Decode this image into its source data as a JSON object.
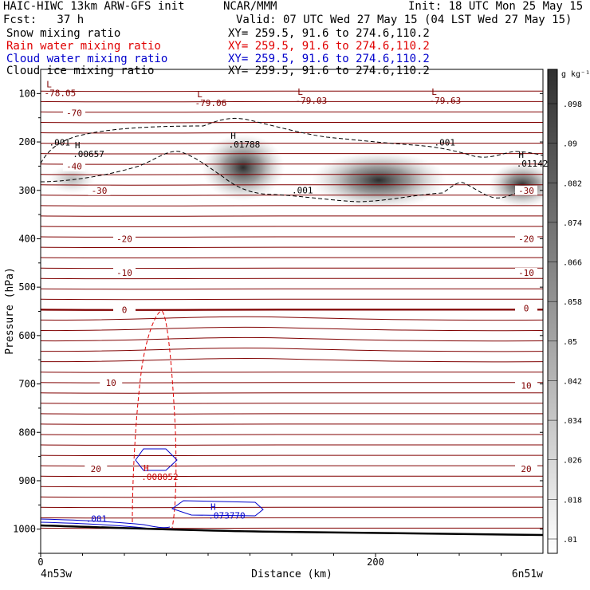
{
  "header": {
    "model_title": "HAIC-HIWC 13km ARW-GFS init",
    "org": "NCAR/MMM",
    "init": "Init: 18 UTC Mon 25 May 15",
    "fcst": "Fcst:   37 h",
    "valid": "Valid: 07 UTC Wed 27 May 15 (04 LST Wed 27 May 15)"
  },
  "fields": [
    {
      "name": "Snow mixing ratio",
      "xy": "XY= 259.5, 91.6 to 274.6,110.2",
      "color": "#000000"
    },
    {
      "name": "Rain water mixing ratio",
      "xy": "XY= 259.5, 91.6 to 274.6,110.2",
      "color": "#e00000"
    },
    {
      "name": "Cloud water mixing ratio",
      "xy": "XY= 259.5, 91.6 to 274.6,110.2",
      "color": "#0000cc"
    },
    {
      "name": "Cloud ice mixing ratio",
      "xy": "XY= 259.5, 91.6 to 274.6,110.2",
      "color": "#000000"
    }
  ],
  "chart_data": {
    "type": "cross-section contour",
    "xlabel": "Distance (km)",
    "ylabel": "Pressure (hPa)",
    "xlim": [
      0,
      300
    ],
    "ylim": [
      1050,
      50
    ],
    "x_ticks": [
      0,
      200
    ],
    "y_ticks": [
      100,
      200,
      300,
      400,
      500,
      600,
      700,
      800,
      900,
      1000
    ],
    "x_endpoints": [
      "4n53w",
      "6n51w"
    ],
    "colorbar": {
      "unit": "g kg⁻¹",
      "ticks": [
        ".01",
        ".018",
        ".026",
        ".034",
        ".042",
        ".05",
        ".058",
        ".066",
        ".074",
        ".082",
        ".09",
        ".098"
      ]
    },
    "temperature_labels": [
      {
        "text": "-70",
        "x": 20,
        "p": 145
      },
      {
        "text": "-40",
        "x": 20,
        "p": 255
      },
      {
        "text": "-30",
        "x": 35,
        "p": 305
      },
      {
        "text": "-30",
        "x": 290,
        "p": 305
      },
      {
        "text": "-20",
        "x": 50,
        "p": 405
      },
      {
        "text": "-20",
        "x": 290,
        "p": 405
      },
      {
        "text": "-10",
        "x": 50,
        "p": 475
      },
      {
        "text": "-10",
        "x": 290,
        "p": 475
      },
      {
        "text": "0",
        "x": 50,
        "p": 552
      },
      {
        "text": "0",
        "x": 290,
        "p": 548
      },
      {
        "text": "10",
        "x": 42,
        "p": 702
      },
      {
        "text": "10",
        "x": 290,
        "p": 708
      },
      {
        "text": "20",
        "x": 33,
        "p": 880
      },
      {
        "text": "20",
        "x": 290,
        "p": 880
      }
    ],
    "extrema_labels": [
      {
        "mark": "L",
        "value": "-78.05",
        "x": 5,
        "p": 87,
        "color": "#800000"
      },
      {
        "mark": "L",
        "value": "-79.06",
        "x": 95,
        "p": 108,
        "color": "#800000"
      },
      {
        "mark": "L",
        "value": "-79.03",
        "x": 155,
        "p": 103,
        "color": "#800000"
      },
      {
        "mark": "L",
        "value": "-79.63",
        "x": 235,
        "p": 103,
        "color": "#800000"
      },
      {
        "mark": "H",
        "value": ".00657",
        "x": 22,
        "p": 213,
        "color": "#000000"
      },
      {
        "mark": "H",
        "value": ".01788",
        "x": 115,
        "p": 193,
        "color": "#000000"
      },
      {
        "mark": "H",
        "value": ".01142",
        "x": 287,
        "p": 233,
        "color": "#000000"
      },
      {
        "mark": "H",
        "value": ".008052",
        "x": 63,
        "p": 880,
        "color": "#cc0000"
      },
      {
        "mark": "H",
        "value": ".073770",
        "x": 103,
        "p": 960,
        "color": "#0000cc"
      }
    ],
    "contour_value_labels": [
      {
        "text": ".001",
        "x": 5,
        "p": 207,
        "color": "#000000"
      },
      {
        "text": ".001",
        "x": 150,
        "p": 306,
        "color": "#000000"
      },
      {
        "text": ".001",
        "x": 235,
        "p": 207,
        "color": "#000000"
      },
      {
        "text": ".001",
        "x": 27,
        "p": 985,
        "color": "#0000cc"
      }
    ]
  }
}
